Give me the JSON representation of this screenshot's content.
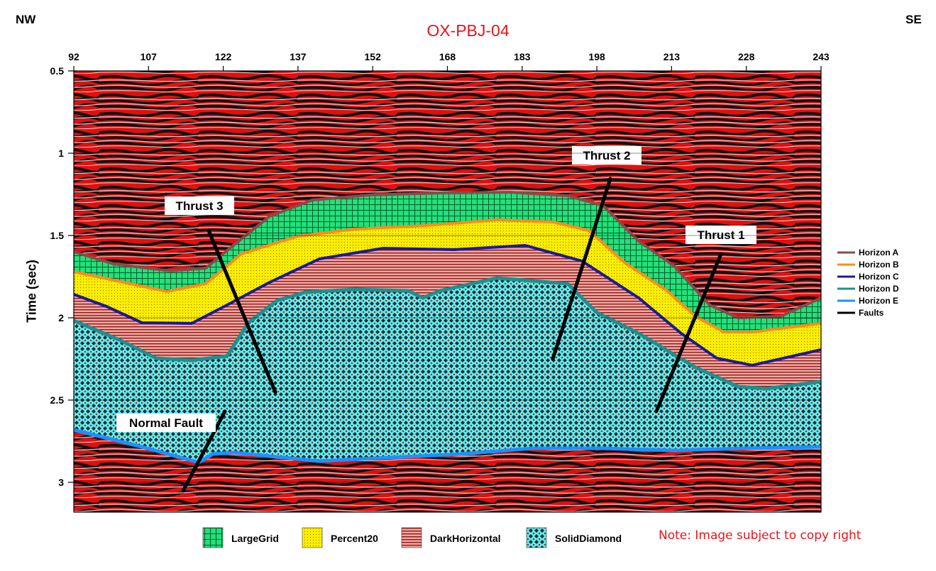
{
  "title": "OX-PBJ-04",
  "direction_left": "NW",
  "direction_right": "SE",
  "y_axis_label": "Time (sec)",
  "x_ticks": [
    "92",
    "107",
    "122",
    "137",
    "152",
    "168",
    "183",
    "198",
    "213",
    "228",
    "243"
  ],
  "y_ticks": [
    "0.5",
    "1",
    "1.5",
    "2",
    "2.5",
    "3"
  ],
  "fault_labels": [
    "Thrust 3",
    "Thrust 2",
    "Thrust 1",
    "Normal Fault"
  ],
  "legend_right": [
    {
      "label": "Horizon A",
      "color": "#8b4a4a"
    },
    {
      "label": "Horizon B",
      "color": "#ff8c1a"
    },
    {
      "label": "Horizon C",
      "color": "#1a1a9c"
    },
    {
      "label": "Horizon D",
      "color": "#1f8f8f"
    },
    {
      "label": "Horizon E",
      "color": "#1e90ff"
    },
    {
      "label": "Faults",
      "color": "#000000"
    }
  ],
  "legend_bottom": [
    {
      "label": "LargeGrid",
      "pattern": "largegrid"
    },
    {
      "label": "Percent20",
      "pattern": "percent20"
    },
    {
      "label": "DarkHorizontal",
      "pattern": "darkhorizontal"
    },
    {
      "label": "SolidDiamond",
      "pattern": "soliddiamond"
    }
  ],
  "note": "Note: Image subject to copy right"
}
